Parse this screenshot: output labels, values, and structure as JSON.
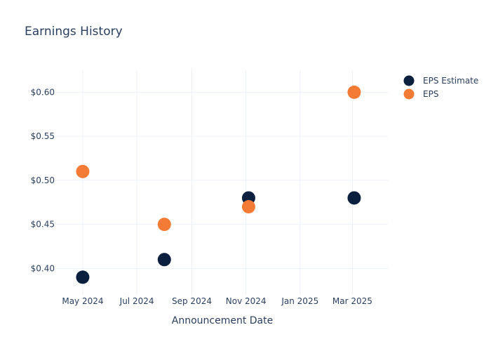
{
  "chart_data": {
    "type": "scatter",
    "title": "Earnings History",
    "xlabel": "Announcement Date",
    "ylabel": "",
    "x_ticks": [
      {
        "date": "2024-05-01",
        "label": "May 2024"
      },
      {
        "date": "2024-07-01",
        "label": "Jul 2024"
      },
      {
        "date": "2024-09-01",
        "label": "Sep 2024"
      },
      {
        "date": "2024-11-01",
        "label": "Nov 2024"
      },
      {
        "date": "2025-01-01",
        "label": "Jan 2025"
      },
      {
        "date": "2025-03-01",
        "label": "Mar 2025"
      }
    ],
    "y_ticks": [
      {
        "value": 0.4,
        "label": "$0.40"
      },
      {
        "value": 0.45,
        "label": "$0.45"
      },
      {
        "value": 0.5,
        "label": "$0.50"
      },
      {
        "value": 0.55,
        "label": "$0.55"
      },
      {
        "value": 0.6,
        "label": "$0.60"
      }
    ],
    "xlim": [
      "2024-04-01",
      "2025-04-10"
    ],
    "ylim": [
      0.37,
      0.625
    ],
    "grid": true,
    "legend_position": "top-right",
    "series": [
      {
        "name": "EPS Estimate",
        "color": "#0b1f3f",
        "points": [
          {
            "x": "2024-05-01",
            "y": 0.39
          },
          {
            "x": "2024-08-01",
            "y": 0.41
          },
          {
            "x": "2024-11-04",
            "y": 0.48
          },
          {
            "x": "2025-03-03",
            "y": 0.48
          }
        ]
      },
      {
        "name": "EPS",
        "color": "#f47b35",
        "points": [
          {
            "x": "2024-05-01",
            "y": 0.51
          },
          {
            "x": "2024-08-01",
            "y": 0.45
          },
          {
            "x": "2024-11-04",
            "y": 0.47
          },
          {
            "x": "2025-03-03",
            "y": 0.6
          }
        ]
      }
    ]
  }
}
